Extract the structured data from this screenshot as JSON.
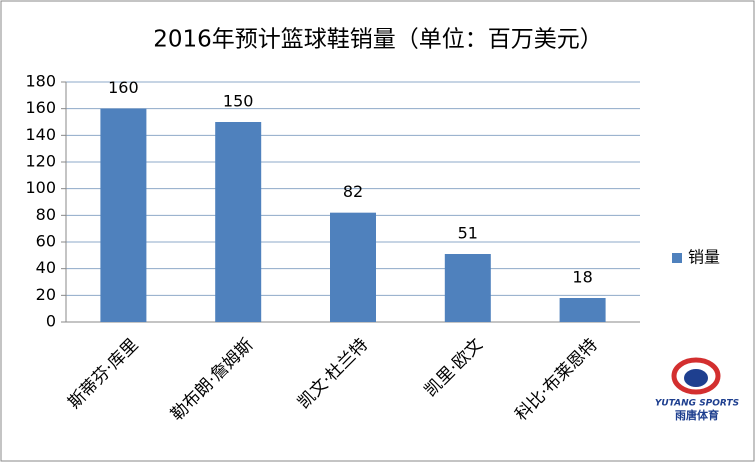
{
  "chart_data": {
    "type": "bar",
    "title": "2016年预计篮球鞋销量（单位：百万美元）",
    "categories": [
      "斯蒂芬·库里",
      "勒布朗·詹姆斯",
      "凯文·杜兰特",
      "凯里·欧文",
      "科比·布莱恩特"
    ],
    "series": [
      {
        "name": "销量",
        "color": "#4f81bd",
        "values": [
          160,
          150,
          82,
          51,
          18
        ]
      }
    ],
    "ylim": [
      0,
      180
    ],
    "yticks": [
      0,
      20,
      40,
      60,
      80,
      100,
      120,
      140,
      160,
      180
    ],
    "grid": true,
    "legend": "right",
    "annotations": [
      "YUTANG SPORTS",
      "雨唐体育"
    ]
  }
}
